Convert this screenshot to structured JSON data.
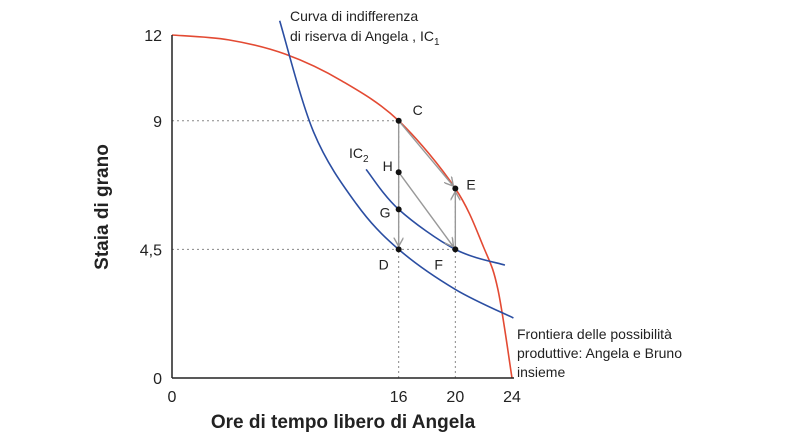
{
  "chart_data": {
    "type": "line",
    "xlabel": "Ore di tempo libero di Angela",
    "ylabel": "Staia di grano",
    "xlim": [
      0,
      24
    ],
    "ylim": [
      0,
      12
    ],
    "x_ticks": [
      "0",
      "16",
      "20",
      "24"
    ],
    "y_ticks": [
      "0",
      "4,5",
      "9",
      "12"
    ],
    "x_tick_values": [
      0,
      16,
      20,
      24
    ],
    "y_tick_values": [
      0,
      4.5,
      9,
      12
    ],
    "grid": false,
    "colors": {
      "frontier": "#e34a33",
      "indifference": "#2b4ea2",
      "arrows": "#999999",
      "points": "#111111",
      "axes": "#222222",
      "guides": "#888888"
    },
    "series": [
      {
        "name": "Frontiera delle possibilità produttive: Angela e Bruno insieme",
        "kind": "frontier",
        "x": [
          0,
          4,
          8,
          12,
          16,
          20,
          22,
          23,
          24
        ],
        "y": [
          12,
          11.83,
          11.33,
          10.39,
          9,
          6.63,
          4.57,
          3.11,
          0
        ]
      },
      {
        "name": "IC1",
        "kind": "indifference",
        "x": [
          7.6,
          10,
          13,
          16,
          20,
          24.1
        ],
        "y": [
          12.5,
          8.6,
          6.1,
          4.5,
          3.1,
          2.1
        ]
      },
      {
        "name": "IC2",
        "kind": "indifference",
        "x": [
          13.7,
          16,
          20,
          23.5
        ],
        "y": [
          7.3,
          5.9,
          4.5,
          3.95
        ]
      }
    ],
    "points": [
      {
        "label": "C",
        "x": 16,
        "y": 9
      },
      {
        "label": "H",
        "x": 16,
        "y": 7.2
      },
      {
        "label": "G",
        "x": 16,
        "y": 5.9
      },
      {
        "label": "D",
        "x": 16,
        "y": 4.5
      },
      {
        "label": "E",
        "x": 20,
        "y": 6.63
      },
      {
        "label": "F",
        "x": 20,
        "y": 4.5
      }
    ],
    "arrows": [
      {
        "from": [
          16,
          9
        ],
        "to": [
          16,
          4.5
        ]
      },
      {
        "from": [
          16,
          9
        ],
        "to": [
          20,
          6.63
        ]
      },
      {
        "from": [
          20,
          4.5
        ],
        "to": [
          20,
          6.63
        ]
      },
      {
        "from": [
          16,
          7.2
        ],
        "to": [
          20,
          4.5
        ]
      }
    ],
    "guides": [
      {
        "from": [
          0,
          9
        ],
        "to": [
          16,
          9
        ]
      },
      {
        "from": [
          0,
          4.5
        ],
        "to": [
          20,
          4.5
        ]
      },
      {
        "from": [
          16,
          0
        ],
        "to": [
          16,
          9
        ]
      },
      {
        "from": [
          20,
          0
        ],
        "to": [
          20,
          6.63
        ]
      }
    ],
    "annotations": {
      "ic1_line1": "Curva di indifferenza",
      "ic1_line2": "di riserva di Angela , IC",
      "ic1_sub": "1",
      "ic2_main": "IC",
      "ic2_sub": "2",
      "frontier_line1": "Frontiera delle possibilità",
      "frontier_line2": "produttive: Angela e Bruno",
      "frontier_line3": "insieme"
    }
  }
}
